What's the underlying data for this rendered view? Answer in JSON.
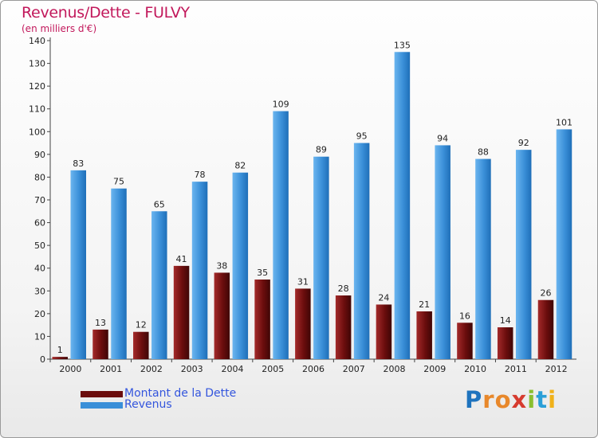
{
  "chart_data": {
    "type": "bar",
    "title": "Revenus/Dette - FULVY",
    "subtitle": "(en milliers d'€)",
    "xlabel": "",
    "ylabel": "",
    "categories": [
      "2000",
      "2001",
      "2002",
      "2003",
      "2004",
      "2005",
      "2006",
      "2007",
      "2008",
      "2009",
      "2010",
      "2011",
      "2012"
    ],
    "series": [
      {
        "name": "Montant de la Dette",
        "color": "#6b0d0d",
        "values": [
          1,
          13,
          12,
          41,
          38,
          35,
          31,
          28,
          24,
          21,
          16,
          14,
          26
        ]
      },
      {
        "name": "Revenus",
        "color": "#3a8fd8",
        "values": [
          83,
          75,
          65,
          78,
          82,
          109,
          89,
          95,
          135,
          94,
          88,
          92,
          101
        ]
      }
    ],
    "ylim": [
      0,
      140
    ],
    "yticks": [
      0,
      10,
      20,
      30,
      40,
      50,
      60,
      70,
      80,
      90,
      100,
      110,
      120,
      130,
      140
    ],
    "grid": false,
    "legend_position": "bottom-left"
  },
  "colors": {
    "title": "#c2185b",
    "legend_text": "#3355dd",
    "axis": "#444444"
  },
  "logo": {
    "text": "Proxiti",
    "letter_colors": [
      "#1e73be",
      "#e8882b",
      "#e8882b",
      "#d63b2f",
      "#8abf2f",
      "#2a9fd8",
      "#f0b21a"
    ]
  }
}
